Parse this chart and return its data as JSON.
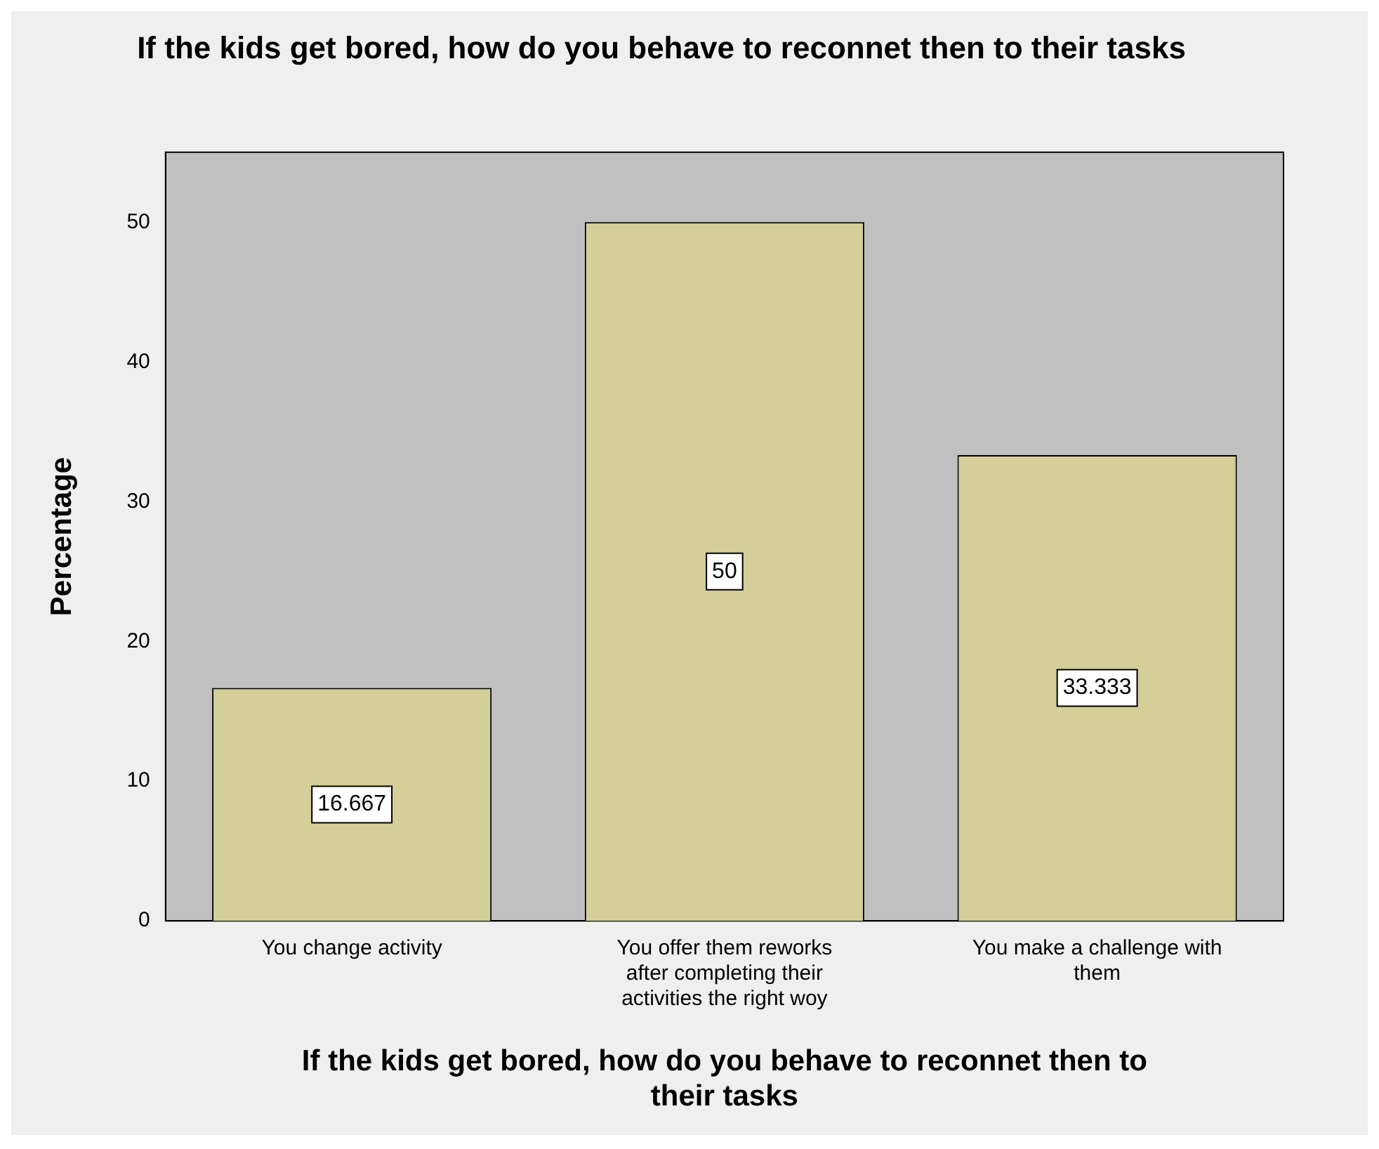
{
  "chart_data": {
    "type": "bar",
    "title": "If the kids get bored, how do you behave to reconnet then to their tasks",
    "xlabel": "If the kids get bored, how do you behave to reconnet then to their tasks",
    "ylabel": "Percentage",
    "categories": [
      "You change activity",
      "You offer them reworks after completing their activities the right woy",
      "You make a challenge with them"
    ],
    "values": [
      16.667,
      50,
      33.333
    ],
    "color": "#d4cf98",
    "ylim": [
      0,
      55
    ],
    "yticks": [
      0,
      10,
      20,
      30,
      40,
      50
    ],
    "grid": false,
    "data_labels": true
  }
}
